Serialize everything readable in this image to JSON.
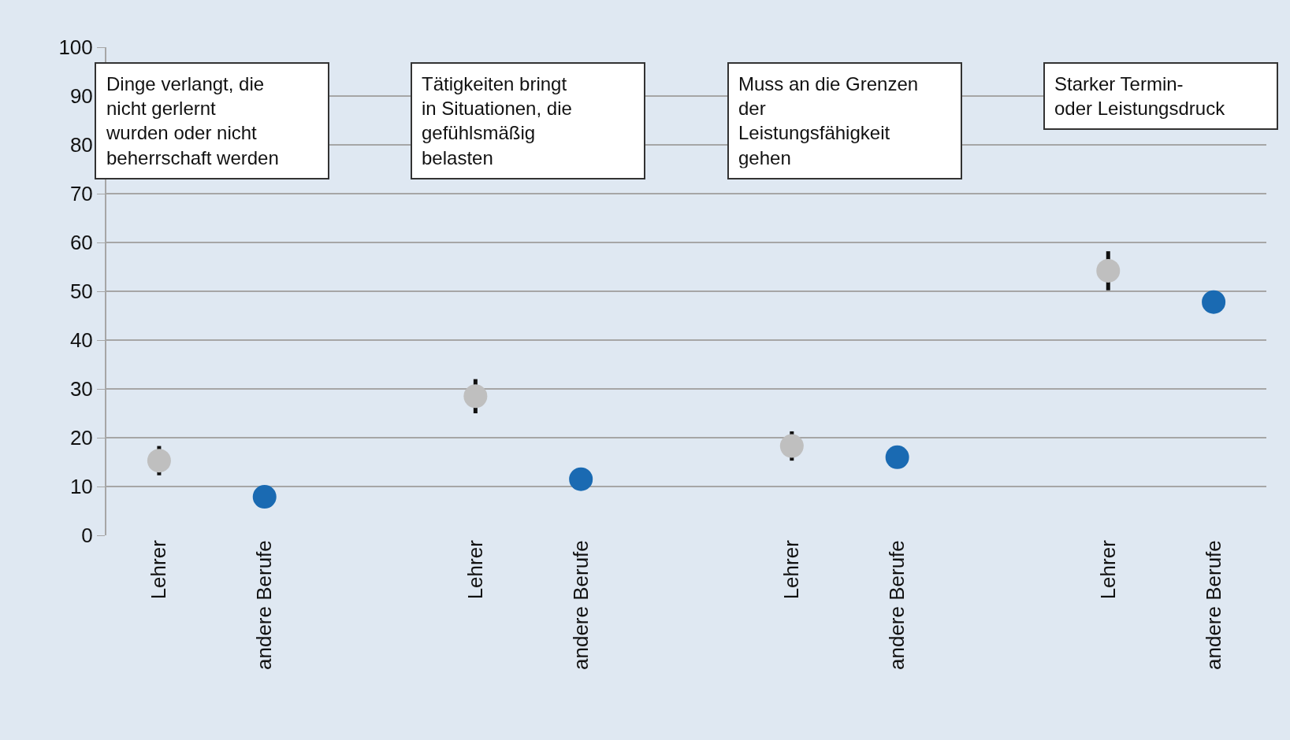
{
  "chart_data": {
    "type": "scatter",
    "categories": [
      "Lehrer",
      "andere Berufe",
      null,
      "Lehrer",
      "andere Berufe",
      null,
      "Lehrer",
      "andere Berufe",
      null,
      "Lehrer",
      "andere Berufe"
    ],
    "series": [
      {
        "color": "#bfbfbf",
        "values": [
          15.3,
          null,
          null,
          28.5,
          null,
          null,
          18.3,
          null,
          null,
          54.2,
          null
        ],
        "errors": [
          3,
          null,
          null,
          3.5,
          null,
          null,
          3,
          null,
          null,
          4,
          null
        ]
      },
      {
        "color": "#1a6ab2",
        "values": [
          null,
          7.9,
          null,
          null,
          11.5,
          null,
          null,
          16,
          null,
          null,
          47.8
        ]
      }
    ],
    "annotations": [
      "Dinge verlangt, die nicht gerlernt wurden oder nicht beherrschaft werden",
      "Tätigkeiten bringt in Situationen, die gefühlsmäßig belasten",
      "Muss an die Grenzen der Leistungsfähigkeit gehen",
      "Starker Termin- oder Leistungsdruck"
    ],
    "ylim": [
      0,
      100
    ],
    "yticks": [
      0,
      10,
      20,
      30,
      40,
      50,
      60,
      70,
      80,
      90,
      100
    ],
    "grid": "y",
    "marker": "circle"
  }
}
